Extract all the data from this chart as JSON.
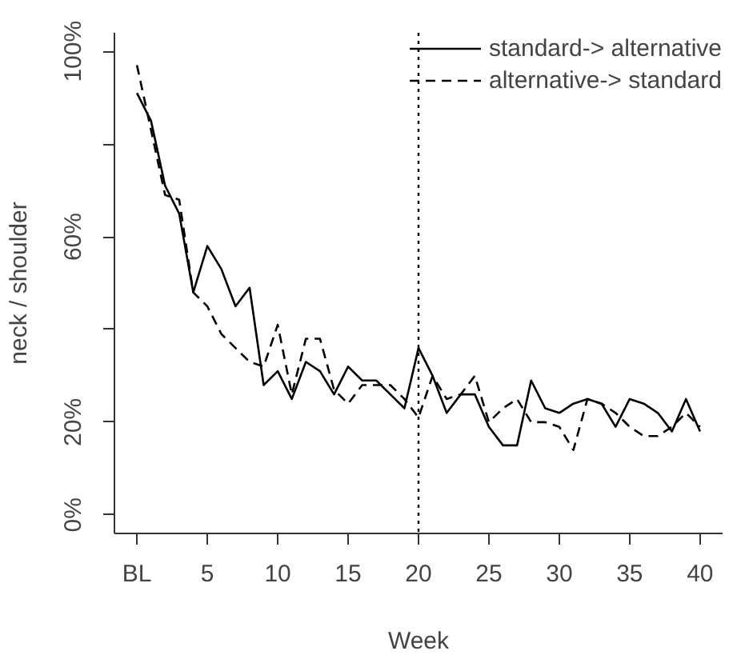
{
  "chart_data": {
    "type": "line",
    "xlabel": "Week",
    "ylabel": "neck / shoulder",
    "x": [
      0,
      1,
      2,
      3,
      4,
      5,
      6,
      7,
      8,
      9,
      10,
      11,
      12,
      13,
      14,
      15,
      16,
      17,
      18,
      19,
      20,
      21,
      22,
      23,
      24,
      25,
      26,
      27,
      28,
      29,
      30,
      31,
      32,
      33,
      34,
      35,
      36,
      37,
      38,
      39,
      40
    ],
    "series": [
      {
        "name": "standard-> alternative",
        "color": "#000000",
        "line_style": "solid",
        "values": [
          91,
          85,
          71,
          65,
          48,
          58,
          53,
          45,
          49,
          28,
          31,
          25,
          33,
          31,
          26,
          32,
          29,
          29,
          26,
          23,
          36,
          30,
          22,
          26,
          26,
          19,
          15,
          15,
          29,
          23,
          22,
          24,
          25,
          24,
          19,
          25,
          24,
          22,
          18,
          25,
          18
        ]
      },
      {
        "name": "alternative-> standard",
        "color": "#000000",
        "line_style": "dashed",
        "values": [
          97,
          83,
          69,
          68,
          48,
          45,
          39,
          36,
          33,
          32,
          41,
          26,
          38,
          38,
          27,
          24,
          28,
          28,
          28,
          25,
          21,
          30,
          25,
          26,
          30,
          20,
          23,
          25,
          20,
          20,
          19,
          14,
          25,
          24,
          22,
          19,
          17,
          17,
          19,
          22,
          19
        ]
      }
    ],
    "xlim": [
      -1.6,
      41.6
    ],
    "xticks": [
      {
        "value": 0,
        "label": "BL"
      },
      5,
      10,
      15,
      20,
      25,
      30,
      35,
      40
    ],
    "ylim": [
      -4,
      104
    ],
    "yticks": [
      {
        "value": 0,
        "label": "0%"
      },
      {
        "value": 20,
        "label": "20%"
      },
      {
        "value": 40,
        "label": null
      },
      {
        "value": 60,
        "label": "60%"
      },
      {
        "value": 80,
        "label": null
      },
      {
        "value": 100,
        "label": "100%"
      }
    ],
    "ref_lines": [
      {
        "axis": "x",
        "value": 20,
        "line_style": "dotted"
      }
    ],
    "legend": "top right",
    "grid": false
  }
}
